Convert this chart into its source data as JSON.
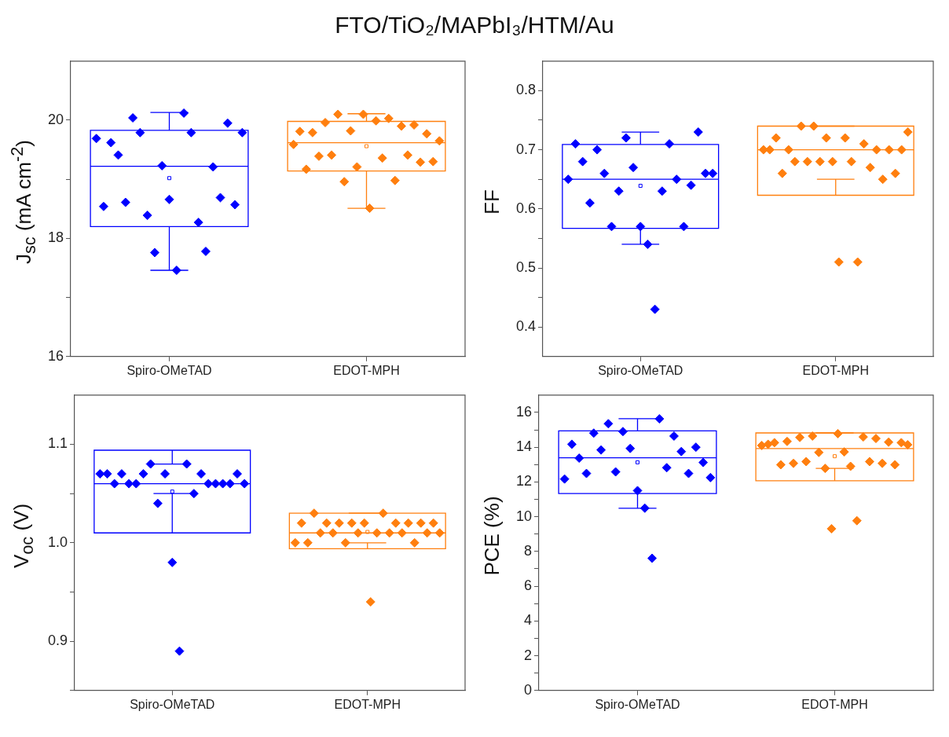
{
  "chart_data": [
    {
      "type": "box",
      "title": "FTO/TiO₂/MAPbI₃/HTM/Au",
      "ylabel": "J$_{sc}$ (mA cm$^{-2}$)",
      "categories": [
        "Spiro-OMeTAD",
        "EDOT-MPH"
      ],
      "colors": [
        "#0000ff",
        "#ff7f0e"
      ],
      "marker": "diamond",
      "grid": false,
      "ylim": [
        16,
        21
      ],
      "yticks": [
        16,
        {
          "value": 17,
          "label": null
        },
        18,
        {
          "value": 19,
          "label": null
        },
        20
      ],
      "boxes": [
        {
          "low": 17.46,
          "q1": 18.2,
          "median": 19.22,
          "q3": 19.83,
          "high": 20.13,
          "mean": 19.02
        },
        {
          "low": 18.51,
          "q1": 19.14,
          "median": 19.62,
          "q3": 19.98,
          "high": 20.11,
          "mean": 19.56
        }
      ],
      "series": [
        {
          "type": "scatter",
          "color": "#0000ff",
          "x": [
            "Spiro-OMeTAD",
            "Spiro-OMeTAD",
            "Spiro-OMeTAD",
            "Spiro-OMeTAD",
            "Spiro-OMeTAD",
            "Spiro-OMeTAD",
            "Spiro-OMeTAD",
            "Spiro-OMeTAD",
            "Spiro-OMeTAD",
            "Spiro-OMeTAD",
            "Spiro-OMeTAD",
            "Spiro-OMeTAD",
            "Spiro-OMeTAD",
            "Spiro-OMeTAD",
            "Spiro-OMeTAD",
            "Spiro-OMeTAD",
            "Spiro-OMeTAD",
            "Spiro-OMeTAD",
            "Spiro-OMeTAD",
            "Spiro-OMeTAD",
            "Spiro-OMeTAD"
          ],
          "values": [
            19.69,
            18.54,
            19.62,
            19.41,
            18.61,
            20.04,
            19.79,
            18.39,
            17.76,
            19.23,
            18.66,
            17.46,
            20.12,
            19.79,
            18.27,
            17.78,
            19.21,
            18.69,
            19.95,
            18.57,
            19.79
          ]
        },
        {
          "type": "scatter",
          "color": "#ff7f0e",
          "x": [
            "EDOT-MPH",
            "EDOT-MPH",
            "EDOT-MPH",
            "EDOT-MPH",
            "EDOT-MPH",
            "EDOT-MPH",
            "EDOT-MPH",
            "EDOT-MPH",
            "EDOT-MPH",
            "EDOT-MPH",
            "EDOT-MPH",
            "EDOT-MPH",
            "EDOT-MPH",
            "EDOT-MPH",
            "EDOT-MPH",
            "EDOT-MPH",
            "EDOT-MPH",
            "EDOT-MPH",
            "EDOT-MPH",
            "EDOT-MPH",
            "EDOT-MPH",
            "EDOT-MPH",
            "EDOT-MPH",
            "EDOT-MPH"
          ],
          "values": [
            19.59,
            19.81,
            19.17,
            19.79,
            19.39,
            19.96,
            19.41,
            20.1,
            18.96,
            19.82,
            19.21,
            20.1,
            18.51,
            19.99,
            19.36,
            20.03,
            18.98,
            19.9,
            19.41,
            19.92,
            19.29,
            19.77,
            19.3,
            19.65
          ]
        }
      ]
    },
    {
      "type": "box",
      "ylabel": "FF",
      "categories": [
        "Spiro-OMeTAD",
        "EDOT-MPH"
      ],
      "colors": [
        "#0000ff",
        "#ff7f0e"
      ],
      "marker": "diamond",
      "grid": false,
      "ylim": [
        0.35,
        0.85
      ],
      "yticks": [
        0.4,
        {
          "value": 0.45,
          "label": null
        },
        0.5,
        {
          "value": 0.55,
          "label": null
        },
        0.6,
        {
          "value": 0.65,
          "label": null
        },
        0.7,
        {
          "value": 0.75,
          "label": null
        },
        0.8
      ],
      "boxes": [
        {
          "low": 0.54,
          "q1": 0.567,
          "median": 0.65,
          "q3": 0.709,
          "high": 0.73,
          "mean": 0.639
        },
        {
          "low": 0.65,
          "q1": 0.623,
          "median": 0.7,
          "q3": 0.74,
          "high": 0.74
        }
      ],
      "series": [
        {
          "type": "scatter",
          "color": "#0000ff",
          "x": [
            "Spiro-OMeTAD",
            "Spiro-OMeTAD",
            "Spiro-OMeTAD",
            "Spiro-OMeTAD",
            "Spiro-OMeTAD",
            "Spiro-OMeTAD",
            "Spiro-OMeTAD",
            "Spiro-OMeTAD",
            "Spiro-OMeTAD",
            "Spiro-OMeTAD",
            "Spiro-OMeTAD",
            "Spiro-OMeTAD",
            "Spiro-OMeTAD",
            "Spiro-OMeTAD",
            "Spiro-OMeTAD",
            "Spiro-OMeTAD",
            "Spiro-OMeTAD",
            "Spiro-OMeTAD",
            "Spiro-OMeTAD",
            "Spiro-OMeTAD",
            "Spiro-OMeTAD"
          ],
          "values": [
            0.65,
            0.71,
            0.68,
            0.61,
            0.7,
            0.66,
            0.57,
            0.63,
            0.72,
            0.67,
            0.57,
            0.54,
            0.43,
            0.63,
            0.71,
            0.65,
            0.57,
            0.64,
            0.73,
            0.66,
            0.66
          ]
        },
        {
          "type": "scatter",
          "color": "#ff7f0e",
          "x": [
            "EDOT-MPH",
            "EDOT-MPH",
            "EDOT-MPH",
            "EDOT-MPH",
            "EDOT-MPH",
            "EDOT-MPH",
            "EDOT-MPH",
            "EDOT-MPH",
            "EDOT-MPH",
            "EDOT-MPH",
            "EDOT-MPH",
            "EDOT-MPH",
            "EDOT-MPH",
            "EDOT-MPH",
            "EDOT-MPH",
            "EDOT-MPH",
            "EDOT-MPH",
            "EDOT-MPH",
            "EDOT-MPH",
            "EDOT-MPH",
            "EDOT-MPH",
            "EDOT-MPH",
            "EDOT-MPH",
            "EDOT-MPH"
          ],
          "values": [
            0.7,
            0.7,
            0.72,
            0.66,
            0.7,
            0.68,
            0.74,
            0.68,
            0.74,
            0.68,
            0.72,
            0.68,
            0.51,
            0.72,
            0.68,
            0.51,
            0.71,
            0.67,
            0.7,
            0.65,
            0.7,
            0.66,
            0.7,
            0.73
          ]
        }
      ]
    },
    {
      "type": "box",
      "ylabel": "V$_{oc}$ (V)",
      "categories": [
        "Spiro-OMeTAD",
        "EDOT-MPH"
      ],
      "colors": [
        "#0000ff",
        "#ff7f0e"
      ],
      "marker": "diamond",
      "grid": false,
      "ylim": [
        0.85,
        1.15
      ],
      "yticks": [
        {
          "value": 0.85,
          "label": null
        },
        0.9,
        {
          "value": 0.95,
          "label": null
        },
        "1.0",
        {
          "value": 1.05,
          "label": null
        },
        1.1
      ],
      "boxes": [
        {
          "low": 1.05,
          "q1": 1.01,
          "median": 1.06,
          "q3": 1.094,
          "high": 1.08,
          "mean": 1.052
        },
        {
          "low": 1.0,
          "q1": 0.994,
          "median": 1.01,
          "q3": 1.03,
          "high": 1.03,
          "mean": 1.011
        }
      ],
      "series": [
        {
          "type": "scatter",
          "color": "#0000ff",
          "x": [
            "Spiro-OMeTAD",
            "Spiro-OMeTAD",
            "Spiro-OMeTAD",
            "Spiro-OMeTAD",
            "Spiro-OMeTAD",
            "Spiro-OMeTAD",
            "Spiro-OMeTAD",
            "Spiro-OMeTAD",
            "Spiro-OMeTAD",
            "Spiro-OMeTAD",
            "Spiro-OMeTAD",
            "Spiro-OMeTAD",
            "Spiro-OMeTAD",
            "Spiro-OMeTAD",
            "Spiro-OMeTAD",
            "Spiro-OMeTAD",
            "Spiro-OMeTAD",
            "Spiro-OMeTAD",
            "Spiro-OMeTAD",
            "Spiro-OMeTAD",
            "Spiro-OMeTAD"
          ],
          "values": [
            1.07,
            1.07,
            1.06,
            1.07,
            1.06,
            1.06,
            1.07,
            1.08,
            1.04,
            1.07,
            0.98,
            0.89,
            1.08,
            1.05,
            1.07,
            1.06,
            1.06,
            1.06,
            1.06,
            1.07,
            1.06
          ]
        },
        {
          "type": "scatter",
          "color": "#ff7f0e",
          "x": [
            "EDOT-MPH",
            "EDOT-MPH",
            "EDOT-MPH",
            "EDOT-MPH",
            "EDOT-MPH",
            "EDOT-MPH",
            "EDOT-MPH",
            "EDOT-MPH",
            "EDOT-MPH",
            "EDOT-MPH",
            "EDOT-MPH",
            "EDOT-MPH",
            "EDOT-MPH",
            "EDOT-MPH",
            "EDOT-MPH",
            "EDOT-MPH",
            "EDOT-MPH",
            "EDOT-MPH",
            "EDOT-MPH",
            "EDOT-MPH",
            "EDOT-MPH",
            "EDOT-MPH",
            "EDOT-MPH",
            "EDOT-MPH"
          ],
          "values": [
            1.0,
            1.02,
            1.0,
            1.03,
            1.01,
            1.02,
            1.01,
            1.02,
            1.0,
            1.02,
            1.01,
            1.02,
            0.94,
            1.01,
            1.03,
            1.01,
            1.02,
            1.01,
            1.02,
            1.0,
            1.02,
            1.01,
            1.02,
            1.01
          ]
        }
      ]
    },
    {
      "type": "box",
      "ylabel": "PCE (%)",
      "categories": [
        "Spiro-OMeTAD",
        "EDOT-MPH"
      ],
      "colors": [
        "#0000ff",
        "#ff7f0e"
      ],
      "marker": "diamond",
      "grid": false,
      "ylim": [
        0,
        17
      ],
      "yticks": [
        0,
        {
          "value": 1,
          "label": null
        },
        2,
        {
          "value": 3,
          "label": null
        },
        4,
        {
          "value": 5,
          "label": null
        },
        6,
        {
          "value": 7,
          "label": null
        },
        8,
        {
          "value": 9,
          "label": null
        },
        10,
        {
          "value": 11,
          "label": null
        },
        12,
        {
          "value": 13,
          "label": null
        },
        14,
        {
          "value": 15,
          "label": null
        },
        16
      ],
      "boxes": [
        {
          "low": 10.49,
          "q1": 11.33,
          "median": 13.39,
          "q3": 14.94,
          "high": 15.64,
          "mean": 13.13
        },
        {
          "low": 12.78,
          "q1": 12.07,
          "median": 13.92,
          "q3": 14.82,
          "high": 14.82,
          "mean": 13.48
        }
      ],
      "series": [
        {
          "type": "scatter",
          "color": "#0000ff",
          "x": [
            "Spiro-OMeTAD",
            "Spiro-OMeTAD",
            "Spiro-OMeTAD",
            "Spiro-OMeTAD",
            "Spiro-OMeTAD",
            "Spiro-OMeTAD",
            "Spiro-OMeTAD",
            "Spiro-OMeTAD",
            "Spiro-OMeTAD",
            "Spiro-OMeTAD",
            "Spiro-OMeTAD",
            "Spiro-OMeTAD",
            "Spiro-OMeTAD",
            "Spiro-OMeTAD",
            "Spiro-OMeTAD",
            "Spiro-OMeTAD",
            "Spiro-OMeTAD",
            "Spiro-OMeTAD",
            "Spiro-OMeTAD",
            "Spiro-OMeTAD",
            "Spiro-OMeTAD"
          ],
          "values": [
            12.17,
            14.17,
            13.37,
            12.49,
            14.81,
            13.84,
            15.35,
            12.58,
            14.9,
            13.93,
            11.5,
            10.49,
            7.61,
            15.63,
            12.82,
            14.64,
            13.75,
            12.49,
            14.0,
            13.12,
            12.25
          ]
        },
        {
          "type": "scatter",
          "color": "#ff7f0e",
          "x": [
            "EDOT-MPH",
            "EDOT-MPH",
            "EDOT-MPH",
            "EDOT-MPH",
            "EDOT-MPH",
            "EDOT-MPH",
            "EDOT-MPH",
            "EDOT-MPH",
            "EDOT-MPH",
            "EDOT-MPH",
            "EDOT-MPH",
            "EDOT-MPH",
            "EDOT-MPH",
            "EDOT-MPH",
            "EDOT-MPH",
            "EDOT-MPH",
            "EDOT-MPH",
            "EDOT-MPH",
            "EDOT-MPH",
            "EDOT-MPH",
            "EDOT-MPH",
            "EDOT-MPH",
            "EDOT-MPH",
            "EDOT-MPH"
          ],
          "values": [
            14.1,
            14.17,
            14.26,
            12.99,
            14.33,
            13.07,
            14.56,
            13.17,
            14.64,
            13.7,
            12.78,
            9.31,
            14.78,
            13.73,
            12.9,
            9.77,
            14.59,
            13.17,
            14.5,
            13.07,
            14.29,
            12.99,
            14.26,
            14.14
          ]
        }
      ]
    }
  ]
}
